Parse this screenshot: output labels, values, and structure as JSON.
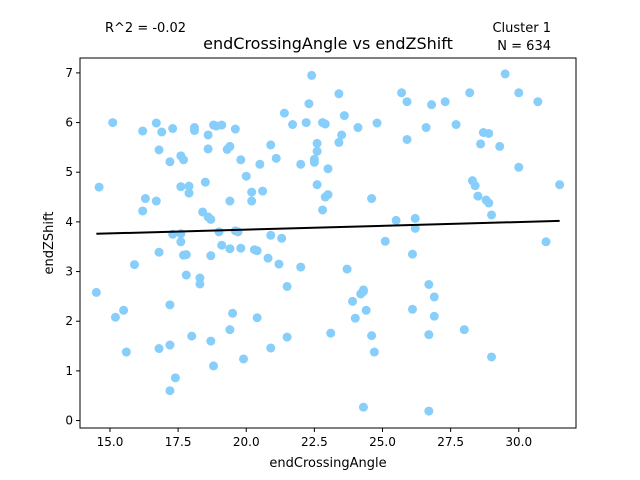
{
  "annotations": {
    "r2": "R^2 = -0.02",
    "cluster": "Cluster 1",
    "n": "N = 634"
  },
  "chart_data": {
    "type": "scatter",
    "title": "endCrossingAngle vs endZShift",
    "xlabel": "endCrossingAngle",
    "ylabel": "endZShift",
    "xlim": [
      13.9,
      32.1
    ],
    "ylim": [
      -0.15,
      7.3
    ],
    "xticks": [
      15.0,
      17.5,
      20.0,
      22.5,
      25.0,
      27.5,
      30.0
    ],
    "xtick_labels": [
      "15.0",
      "17.5",
      "20.0",
      "22.5",
      "25.0",
      "27.5",
      "30.0"
    ],
    "yticks": [
      0,
      1,
      2,
      3,
      4,
      5,
      6,
      7
    ],
    "ytick_labels": [
      "0",
      "1",
      "2",
      "3",
      "4",
      "5",
      "6",
      "7"
    ],
    "grid": false,
    "point_color": "#87CEFA",
    "line_color": "#000000",
    "regression": {
      "x": [
        14.5,
        31.5
      ],
      "y": [
        3.76,
        4.02
      ]
    },
    "points": [
      [
        14.6,
        4.7
      ],
      [
        14.5,
        2.58
      ],
      [
        15.1,
        6.0
      ],
      [
        15.2,
        2.08
      ],
      [
        15.5,
        2.22
      ],
      [
        15.6,
        1.38
      ],
      [
        15.9,
        3.14
      ],
      [
        16.2,
        5.83
      ],
      [
        16.3,
        4.47
      ],
      [
        16.2,
        4.22
      ],
      [
        16.7,
        5.99
      ],
      [
        16.7,
        4.42
      ],
      [
        16.9,
        5.81
      ],
      [
        16.8,
        5.45
      ],
      [
        16.8,
        3.39
      ],
      [
        16.8,
        1.45
      ],
      [
        17.2,
        5.21
      ],
      [
        17.3,
        5.88
      ],
      [
        17.2,
        2.33
      ],
      [
        17.2,
        1.52
      ],
      [
        17.3,
        3.75
      ],
      [
        17.4,
        0.86
      ],
      [
        17.2,
        0.6
      ],
      [
        17.6,
        5.33
      ],
      [
        17.6,
        4.71
      ],
      [
        17.6,
        3.76
      ],
      [
        17.7,
        5.25
      ],
      [
        17.6,
        3.6
      ],
      [
        17.7,
        3.33
      ],
      [
        17.8,
        3.34
      ],
      [
        17.8,
        2.93
      ],
      [
        17.9,
        4.72
      ],
      [
        17.9,
        4.58
      ],
      [
        18.1,
        5.84
      ],
      [
        18.1,
        5.9
      ],
      [
        18.0,
        1.7
      ],
      [
        18.4,
        4.2
      ],
      [
        18.3,
        2.87
      ],
      [
        18.3,
        2.75
      ],
      [
        18.5,
        4.8
      ],
      [
        18.6,
        5.75
      ],
      [
        18.6,
        5.47
      ],
      [
        18.6,
        4.1
      ],
      [
        18.7,
        4.05
      ],
      [
        18.7,
        3.32
      ],
      [
        18.7,
        1.6
      ],
      [
        18.8,
        1.1
      ],
      [
        18.8,
        5.95
      ],
      [
        18.9,
        5.93
      ],
      [
        19.0,
        3.8
      ],
      [
        19.1,
        5.95
      ],
      [
        19.1,
        3.53
      ],
      [
        19.3,
        5.46
      ],
      [
        19.4,
        5.52
      ],
      [
        19.4,
        3.46
      ],
      [
        19.4,
        4.42
      ],
      [
        19.4,
        1.83
      ],
      [
        19.5,
        2.16
      ],
      [
        19.6,
        5.87
      ],
      [
        19.6,
        3.82
      ],
      [
        19.7,
        3.8
      ],
      [
        19.8,
        3.47
      ],
      [
        19.8,
        5.25
      ],
      [
        19.9,
        1.24
      ],
      [
        20.0,
        4.92
      ],
      [
        20.2,
        4.6
      ],
      [
        20.2,
        4.42
      ],
      [
        20.3,
        3.44
      ],
      [
        20.4,
        3.42
      ],
      [
        20.4,
        2.07
      ],
      [
        20.5,
        5.16
      ],
      [
        20.6,
        4.62
      ],
      [
        20.8,
        3.27
      ],
      [
        20.9,
        3.73
      ],
      [
        20.9,
        5.55
      ],
      [
        20.9,
        1.46
      ],
      [
        21.1,
        5.28
      ],
      [
        21.2,
        3.15
      ],
      [
        21.3,
        3.67
      ],
      [
        21.4,
        6.19
      ],
      [
        21.5,
        2.7
      ],
      [
        21.5,
        1.68
      ],
      [
        21.7,
        5.96
      ],
      [
        22.0,
        5.16
      ],
      [
        22.0,
        3.09
      ],
      [
        22.2,
        6.0
      ],
      [
        22.3,
        6.38
      ],
      [
        22.4,
        6.95
      ],
      [
        22.5,
        5.26
      ],
      [
        22.5,
        5.2
      ],
      [
        22.6,
        5.58
      ],
      [
        22.6,
        5.42
      ],
      [
        22.6,
        4.75
      ],
      [
        22.8,
        6.0
      ],
      [
        22.9,
        5.97
      ],
      [
        22.8,
        4.24
      ],
      [
        22.9,
        4.5
      ],
      [
        23.0,
        4.55
      ],
      [
        23.0,
        5.07
      ],
      [
        23.1,
        1.76
      ],
      [
        23.4,
        5.6
      ],
      [
        23.4,
        6.58
      ],
      [
        23.5,
        5.75
      ],
      [
        23.6,
        6.14
      ],
      [
        23.7,
        3.05
      ],
      [
        23.9,
        2.4
      ],
      [
        24.0,
        2.06
      ],
      [
        24.1,
        5.9
      ],
      [
        24.2,
        2.55
      ],
      [
        24.3,
        2.6
      ],
      [
        24.3,
        2.63
      ],
      [
        24.4,
        2.22
      ],
      [
        24.3,
        0.27
      ],
      [
        24.6,
        4.47
      ],
      [
        24.6,
        1.71
      ],
      [
        24.7,
        1.38
      ],
      [
        24.8,
        5.99
      ],
      [
        25.1,
        3.61
      ],
      [
        25.5,
        4.03
      ],
      [
        25.7,
        6.6
      ],
      [
        25.9,
        6.42
      ],
      [
        25.9,
        5.66
      ],
      [
        26.1,
        3.35
      ],
      [
        26.1,
        2.24
      ],
      [
        26.2,
        4.07
      ],
      [
        26.2,
        3.87
      ],
      [
        26.6,
        5.9
      ],
      [
        26.7,
        1.73
      ],
      [
        26.7,
        2.74
      ],
      [
        26.8,
        6.36
      ],
      [
        26.7,
        0.19
      ],
      [
        26.9,
        2.49
      ],
      [
        26.9,
        2.1
      ],
      [
        27.3,
        6.42
      ],
      [
        27.7,
        5.96
      ],
      [
        28.0,
        1.83
      ],
      [
        28.2,
        6.6
      ],
      [
        28.3,
        4.83
      ],
      [
        28.4,
        4.73
      ],
      [
        28.5,
        4.52
      ],
      [
        28.6,
        5.57
      ],
      [
        28.7,
        5.8
      ],
      [
        28.8,
        4.44
      ],
      [
        28.9,
        5.78
      ],
      [
        28.9,
        4.38
      ],
      [
        29.0,
        4.14
      ],
      [
        29.0,
        1.28
      ],
      [
        29.3,
        5.52
      ],
      [
        29.5,
        6.98
      ],
      [
        30.0,
        6.6
      ],
      [
        30.0,
        5.1
      ],
      [
        30.7,
        6.42
      ],
      [
        31.0,
        3.6
      ],
      [
        31.5,
        4.75
      ]
    ]
  }
}
